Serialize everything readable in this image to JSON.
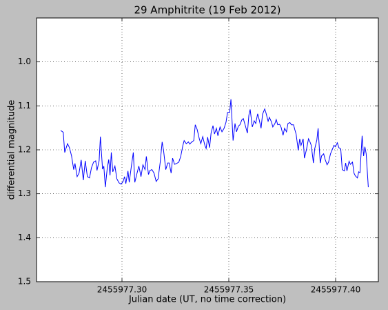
{
  "chart_data": {
    "type": "line",
    "title": "29 Amphitrite (19 Feb 2012)",
    "x_label": "Julian date (UT, no time correction)",
    "y_label": "differential magnitude",
    "color": "#0000ff",
    "grid": true,
    "y_inverted": true,
    "xlim": [
      2455977.26,
      2455977.42
    ],
    "ylim": [
      0.9,
      1.5
    ],
    "xticks": [
      {
        "value": 2455977.3,
        "label": "2455977.30"
      },
      {
        "value": 2455977.35,
        "label": "2455977.35"
      },
      {
        "value": 2455977.4,
        "label": "2455977.40"
      }
    ],
    "yticks": [
      {
        "value": 1.0,
        "label": "1.0"
      },
      1.1,
      1.2,
      1.3,
      1.4,
      1.5
    ],
    "x": [
      2455977.2713,
      2455977.2725,
      2455977.2732,
      2455977.2745,
      2455977.2754,
      2455977.2764,
      2455977.2774,
      2455977.278,
      2455977.279,
      2455977.2799,
      2455977.2809,
      2455977.2819,
      2455977.2828,
      2455977.2838,
      2455977.2848,
      2455977.2857,
      2455977.2867,
      2455977.2877,
      2455977.2883,
      2455977.2893,
      2455977.2899,
      2455977.2909,
      2455977.2915,
      2455977.2922,
      2455977.2931,
      2455977.2938,
      2455977.2944,
      2455977.295,
      2455977.2957,
      2455977.2967,
      2455977.2976,
      2455977.2986,
      2455977.2996,
      2455977.3005,
      2455977.3012,
      2455977.3018,
      2455977.3028,
      2455977.3034,
      2455977.3044,
      2455977.3053,
      2455977.306,
      2455977.3069,
      2455977.3079,
      2455977.3089,
      2455977.3098,
      2455977.3108,
      2455977.3114,
      2455977.3124,
      2455977.3131,
      2455977.314,
      2455977.315,
      2455977.316,
      2455977.3169,
      2455977.3179,
      2455977.3188,
      2455977.3195,
      2455977.3205,
      2455977.3214,
      2455977.3221,
      2455977.323,
      2455977.3237,
      2455977.3246,
      2455977.3256,
      2455977.3266,
      2455977.3275,
      2455977.3285,
      2455977.3291,
      2455977.3301,
      2455977.3311,
      2455977.3317,
      2455977.3327,
      2455977.3336,
      2455977.3343,
      2455977.3352,
      2455977.3362,
      2455977.3369,
      2455977.3378,
      2455977.3388,
      2455977.3394,
      2455977.3401,
      2455977.341,
      2455977.3417,
      2455977.3426,
      2455977.3433,
      2455977.3442,
      2455977.3449,
      2455977.3459,
      2455977.3468,
      2455977.3478,
      2455977.3487,
      2455977.3494,
      2455977.3504,
      2455977.351,
      2455977.352,
      2455977.3529,
      2455977.3536,
      2455977.3545,
      2455977.3552,
      2455977.3561,
      2455977.3568,
      2455977.3578,
      2455977.3587,
      2455977.3594,
      2455977.36,
      2455977.361,
      2455977.3619,
      2455977.3626,
      2455977.3635,
      2455977.3642,
      2455977.3651,
      2455977.3658,
      2455977.3668,
      2455977.3674,
      2455977.3684,
      2455977.369,
      2455977.37,
      2455977.3706,
      2455977.3716,
      2455977.3722,
      2455977.3729,
      2455977.3738,
      2455977.3745,
      2455977.3754,
      2455977.3761,
      2455977.377,
      2455977.3777,
      2455977.3786,
      2455977.3793,
      2455977.3803,
      2455977.3809,
      2455977.3815,
      2455977.3825,
      2455977.3832,
      2455977.3838,
      2455977.3848,
      2455977.3854,
      2455977.3864,
      2455977.3873,
      2455977.388,
      2455977.3886,
      2455977.3896,
      2455977.3902,
      2455977.3912,
      2455977.3918,
      2455977.3928,
      2455977.3934,
      2455977.3944,
      2455977.3951,
      2455977.396,
      2455977.3967,
      2455977.3976,
      2455977.3983,
      2455977.3992,
      2455977.3999,
      2455977.4008,
      2455977.4015,
      2455977.4024,
      2455977.4031,
      2455977.4041,
      2455977.4047,
      2455977.4053,
      2455977.4063,
      2455977.4069,
      2455977.4079,
      2455977.4086,
      2455977.4092,
      2455977.4102,
      2455977.4108,
      2455977.4114,
      2455977.4124,
      2455977.4131,
      2455977.4137,
      2455977.4143,
      2455977.4153
    ],
    "values": [
      1.156,
      1.16,
      1.206,
      1.186,
      1.195,
      1.214,
      1.245,
      1.231,
      1.261,
      1.253,
      1.223,
      1.269,
      1.225,
      1.261,
      1.264,
      1.241,
      1.228,
      1.225,
      1.247,
      1.225,
      1.17,
      1.244,
      1.237,
      1.285,
      1.242,
      1.222,
      1.258,
      1.206,
      1.25,
      1.237,
      1.266,
      1.275,
      1.278,
      1.272,
      1.261,
      1.277,
      1.248,
      1.274,
      1.237,
      1.206,
      1.274,
      1.256,
      1.237,
      1.261,
      1.234,
      1.245,
      1.215,
      1.256,
      1.247,
      1.245,
      1.253,
      1.272,
      1.266,
      1.228,
      1.182,
      1.203,
      1.245,
      1.23,
      1.23,
      1.253,
      1.219,
      1.233,
      1.231,
      1.228,
      1.215,
      1.19,
      1.179,
      1.186,
      1.182,
      1.187,
      1.182,
      1.179,
      1.143,
      1.154,
      1.175,
      1.186,
      1.17,
      1.19,
      1.197,
      1.171,
      1.195,
      1.162,
      1.145,
      1.164,
      1.151,
      1.168,
      1.148,
      1.159,
      1.151,
      1.137,
      1.115,
      1.115,
      1.085,
      1.179,
      1.14,
      1.159,
      1.146,
      1.143,
      1.132,
      1.129,
      1.146,
      1.162,
      1.121,
      1.108,
      1.148,
      1.134,
      1.14,
      1.118,
      1.131,
      1.151,
      1.119,
      1.107,
      1.116,
      1.135,
      1.126,
      1.137,
      1.148,
      1.14,
      1.131,
      1.143,
      1.142,
      1.149,
      1.167,
      1.151,
      1.159,
      1.14,
      1.138,
      1.143,
      1.143,
      1.154,
      1.164,
      1.201,
      1.175,
      1.19,
      1.175,
      1.219,
      1.198,
      1.175,
      1.182,
      1.19,
      1.23,
      1.198,
      1.178,
      1.151,
      1.23,
      1.214,
      1.209,
      1.222,
      1.234,
      1.228,
      1.209,
      1.201,
      1.19,
      1.193,
      1.184,
      1.195,
      1.198,
      1.245,
      1.248,
      1.23,
      1.248,
      1.226,
      1.233,
      1.228,
      1.253,
      1.259,
      1.264,
      1.25,
      1.252,
      1.168,
      1.214,
      1.193,
      1.209,
      1.285
    ]
  }
}
